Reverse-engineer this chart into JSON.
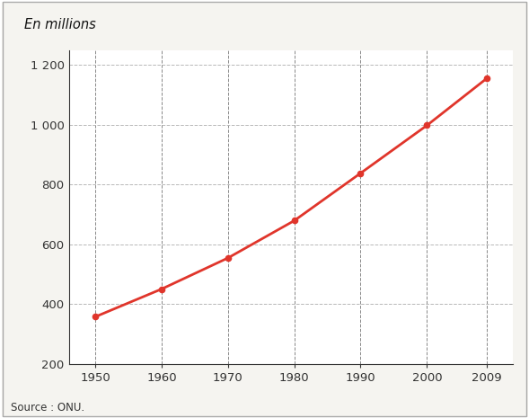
{
  "years": [
    1950,
    1960,
    1970,
    1980,
    1990,
    2000,
    2009
  ],
  "population": [
    357,
    450,
    554,
    679,
    838,
    998,
    1155
  ],
  "ylabel": "En millions",
  "source": "Source : ONU.",
  "ylim": [
    200,
    1250
  ],
  "xlim": [
    1946,
    2013
  ],
  "yticks": [
    200,
    400,
    600,
    800,
    1000,
    1200
  ],
  "ytick_labels": [
    "200",
    "400",
    "600",
    "800",
    "1 000",
    "1 200"
  ],
  "xticks": [
    1950,
    1960,
    1970,
    1980,
    1990,
    2000,
    2009
  ],
  "line_color": "#e0352b",
  "marker_color": "#e0352b",
  "grid_h_color": "#b8b8b8",
  "grid_v_color": "#888888",
  "bg_color": "#f5f4f0",
  "plot_bg_color": "#ffffff",
  "spine_color": "#333333",
  "tick_color": "#333333",
  "text_color": "#111111",
  "source_color": "#333333",
  "border_color": "#aaaaaa"
}
